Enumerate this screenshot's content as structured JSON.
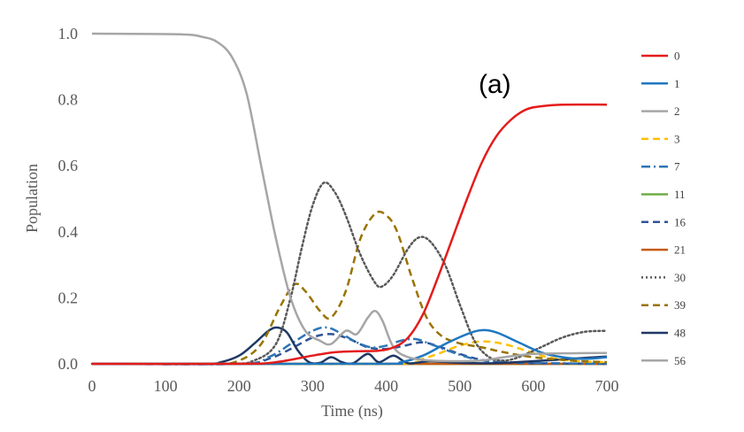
{
  "chart_data": {
    "type": "line",
    "title": "",
    "annotation": "(a)",
    "xlabel": "Time (ns)",
    "ylabel": "Population",
    "xlim": [
      0,
      700
    ],
    "ylim": [
      0,
      1.0
    ],
    "x_ticks": [
      0,
      100,
      200,
      300,
      400,
      500,
      600,
      700
    ],
    "y_ticks": [
      "0.0",
      "0.2",
      "0.4",
      "0.6",
      "0.8",
      "1.0"
    ],
    "grid": false,
    "legend_position": "right",
    "series": [
      {
        "name": "0",
        "color": "#e41c1c",
        "dash": "solid",
        "points": [
          [
            0,
            0
          ],
          [
            200,
            0
          ],
          [
            250,
            0.005
          ],
          [
            300,
            0.025
          ],
          [
            330,
            0.035
          ],
          [
            360,
            0.038
          ],
          [
            390,
            0.04
          ],
          [
            410,
            0.05
          ],
          [
            430,
            0.08
          ],
          [
            450,
            0.15
          ],
          [
            470,
            0.26
          ],
          [
            490,
            0.38
          ],
          [
            510,
            0.5
          ],
          [
            530,
            0.61
          ],
          [
            550,
            0.69
          ],
          [
            570,
            0.74
          ],
          [
            590,
            0.77
          ],
          [
            610,
            0.78
          ],
          [
            640,
            0.785
          ],
          [
            700,
            0.785
          ]
        ]
      },
      {
        "name": "1",
        "color": "#1f78c1",
        "dash": "solid",
        "points": [
          [
            0,
            0
          ],
          [
            380,
            0
          ],
          [
            420,
            0.005
          ],
          [
            450,
            0.025
          ],
          [
            480,
            0.06
          ],
          [
            510,
            0.09
          ],
          [
            530,
            0.102
          ],
          [
            550,
            0.095
          ],
          [
            580,
            0.065
          ],
          [
            610,
            0.035
          ],
          [
            640,
            0.02
          ],
          [
            670,
            0.015
          ],
          [
            700,
            0.02
          ]
        ]
      },
      {
        "name": "2",
        "color": "#a6a6a6",
        "dash": "solid",
        "points": [
          [
            0,
            0
          ],
          [
            700,
            0
          ]
        ]
      },
      {
        "name": "3",
        "color": "#ffc000",
        "dash": "dashed",
        "points": [
          [
            0,
            0
          ],
          [
            400,
            0
          ],
          [
            440,
            0.01
          ],
          [
            470,
            0.03
          ],
          [
            500,
            0.055
          ],
          [
            530,
            0.068
          ],
          [
            560,
            0.06
          ],
          [
            590,
            0.04
          ],
          [
            620,
            0.02
          ],
          [
            660,
            0.008
          ],
          [
            700,
            0.005
          ]
        ]
      },
      {
        "name": "7",
        "color": "#2e75b6",
        "dash": "dashdot",
        "points": [
          [
            0,
            0
          ],
          [
            200,
            0
          ],
          [
            240,
            0.02
          ],
          [
            270,
            0.06
          ],
          [
            300,
            0.1
          ],
          [
            320,
            0.11
          ],
          [
            340,
            0.09
          ],
          [
            360,
            0.065
          ],
          [
            380,
            0.05
          ],
          [
            400,
            0.055
          ],
          [
            420,
            0.07
          ],
          [
            440,
            0.075
          ],
          [
            460,
            0.06
          ],
          [
            490,
            0.035
          ],
          [
            520,
            0.015
          ],
          [
            560,
            0.005
          ],
          [
            700,
            0
          ]
        ]
      },
      {
        "name": "11",
        "color": "#70ad47",
        "dash": "solid",
        "points": [
          [
            0,
            0
          ],
          [
            700,
            0
          ]
        ]
      },
      {
        "name": "16",
        "color": "#2f5597",
        "dash": "dashed",
        "points": [
          [
            0,
            0
          ],
          [
            200,
            0
          ],
          [
            240,
            0.015
          ],
          [
            270,
            0.045
          ],
          [
            300,
            0.08
          ],
          [
            325,
            0.09
          ],
          [
            350,
            0.075
          ],
          [
            375,
            0.05
          ],
          [
            400,
            0.045
          ],
          [
            425,
            0.055
          ],
          [
            450,
            0.065
          ],
          [
            475,
            0.05
          ],
          [
            500,
            0.03
          ],
          [
            530,
            0.012
          ],
          [
            570,
            0.003
          ],
          [
            700,
            0
          ]
        ]
      },
      {
        "name": "21",
        "color": "#c55a11",
        "dash": "solid",
        "points": [
          [
            0,
            0
          ],
          [
            700,
            0
          ]
        ]
      },
      {
        "name": "30",
        "color": "#595959",
        "dash": "dotted",
        "points": [
          [
            0,
            0
          ],
          [
            180,
            0
          ],
          [
            220,
            0.01
          ],
          [
            250,
            0.06
          ],
          [
            270,
            0.2
          ],
          [
            285,
            0.35
          ],
          [
            300,
            0.48
          ],
          [
            315,
            0.548
          ],
          [
            330,
            0.52
          ],
          [
            345,
            0.45
          ],
          [
            365,
            0.33
          ],
          [
            385,
            0.245
          ],
          [
            395,
            0.235
          ],
          [
            410,
            0.27
          ],
          [
            430,
            0.35
          ],
          [
            445,
            0.383
          ],
          [
            460,
            0.37
          ],
          [
            480,
            0.3
          ],
          [
            500,
            0.18
          ],
          [
            520,
            0.07
          ],
          [
            540,
            0.02
          ],
          [
            560,
            0.01
          ],
          [
            580,
            0.02
          ],
          [
            610,
            0.05
          ],
          [
            640,
            0.08
          ],
          [
            670,
            0.097
          ],
          [
            700,
            0.1
          ]
        ]
      },
      {
        "name": "39",
        "color": "#997300",
        "dash": "dashed",
        "points": [
          [
            0,
            0
          ],
          [
            160,
            0
          ],
          [
            200,
            0.01
          ],
          [
            230,
            0.06
          ],
          [
            255,
            0.17
          ],
          [
            275,
            0.24
          ],
          [
            290,
            0.22
          ],
          [
            310,
            0.16
          ],
          [
            325,
            0.14
          ],
          [
            345,
            0.22
          ],
          [
            365,
            0.38
          ],
          [
            385,
            0.455
          ],
          [
            400,
            0.45
          ],
          [
            415,
            0.4
          ],
          [
            435,
            0.26
          ],
          [
            455,
            0.14
          ],
          [
            475,
            0.085
          ],
          [
            500,
            0.062
          ],
          [
            530,
            0.05
          ],
          [
            560,
            0.035
          ],
          [
            600,
            0.02
          ],
          [
            650,
            0.01
          ],
          [
            700,
            0.005
          ]
        ]
      },
      {
        "name": "48",
        "color": "#1f3864",
        "dash": "solid",
        "points": [
          [
            0,
            0
          ],
          [
            150,
            0
          ],
          [
            175,
            0.005
          ],
          [
            200,
            0.025
          ],
          [
            220,
            0.06
          ],
          [
            240,
            0.1
          ],
          [
            252,
            0.11
          ],
          [
            265,
            0.095
          ],
          [
            280,
            0.04
          ],
          [
            295,
            0.005
          ],
          [
            310,
            0.003
          ],
          [
            325,
            0.02
          ],
          [
            340,
            0.005
          ],
          [
            355,
            0.002
          ],
          [
            375,
            0.03
          ],
          [
            390,
            0.005
          ],
          [
            410,
            0.025
          ],
          [
            430,
            0.002
          ],
          [
            460,
            0.008
          ],
          [
            500,
            0.003
          ],
          [
            550,
            0.002
          ],
          [
            600,
            0.008
          ],
          [
            650,
            0.015
          ],
          [
            700,
            0.022
          ]
        ]
      },
      {
        "name": "56",
        "color": "#a6a6a6",
        "dash": "solid",
        "points": [
          [
            0,
            1.0
          ],
          [
            120,
            0.998
          ],
          [
            150,
            0.99
          ],
          [
            170,
            0.975
          ],
          [
            190,
            0.93
          ],
          [
            210,
            0.82
          ],
          [
            230,
            0.6
          ],
          [
            250,
            0.38
          ],
          [
            270,
            0.2
          ],
          [
            290,
            0.1
          ],
          [
            310,
            0.07
          ],
          [
            325,
            0.06
          ],
          [
            345,
            0.1
          ],
          [
            360,
            0.09
          ],
          [
            375,
            0.14
          ],
          [
            385,
            0.16
          ],
          [
            395,
            0.13
          ],
          [
            410,
            0.05
          ],
          [
            430,
            0.02
          ],
          [
            460,
            0.01
          ],
          [
            500,
            0.008
          ],
          [
            530,
            0.01
          ],
          [
            560,
            0.02
          ],
          [
            600,
            0.03
          ],
          [
            650,
            0.032
          ],
          [
            700,
            0.033
          ]
        ]
      }
    ]
  }
}
